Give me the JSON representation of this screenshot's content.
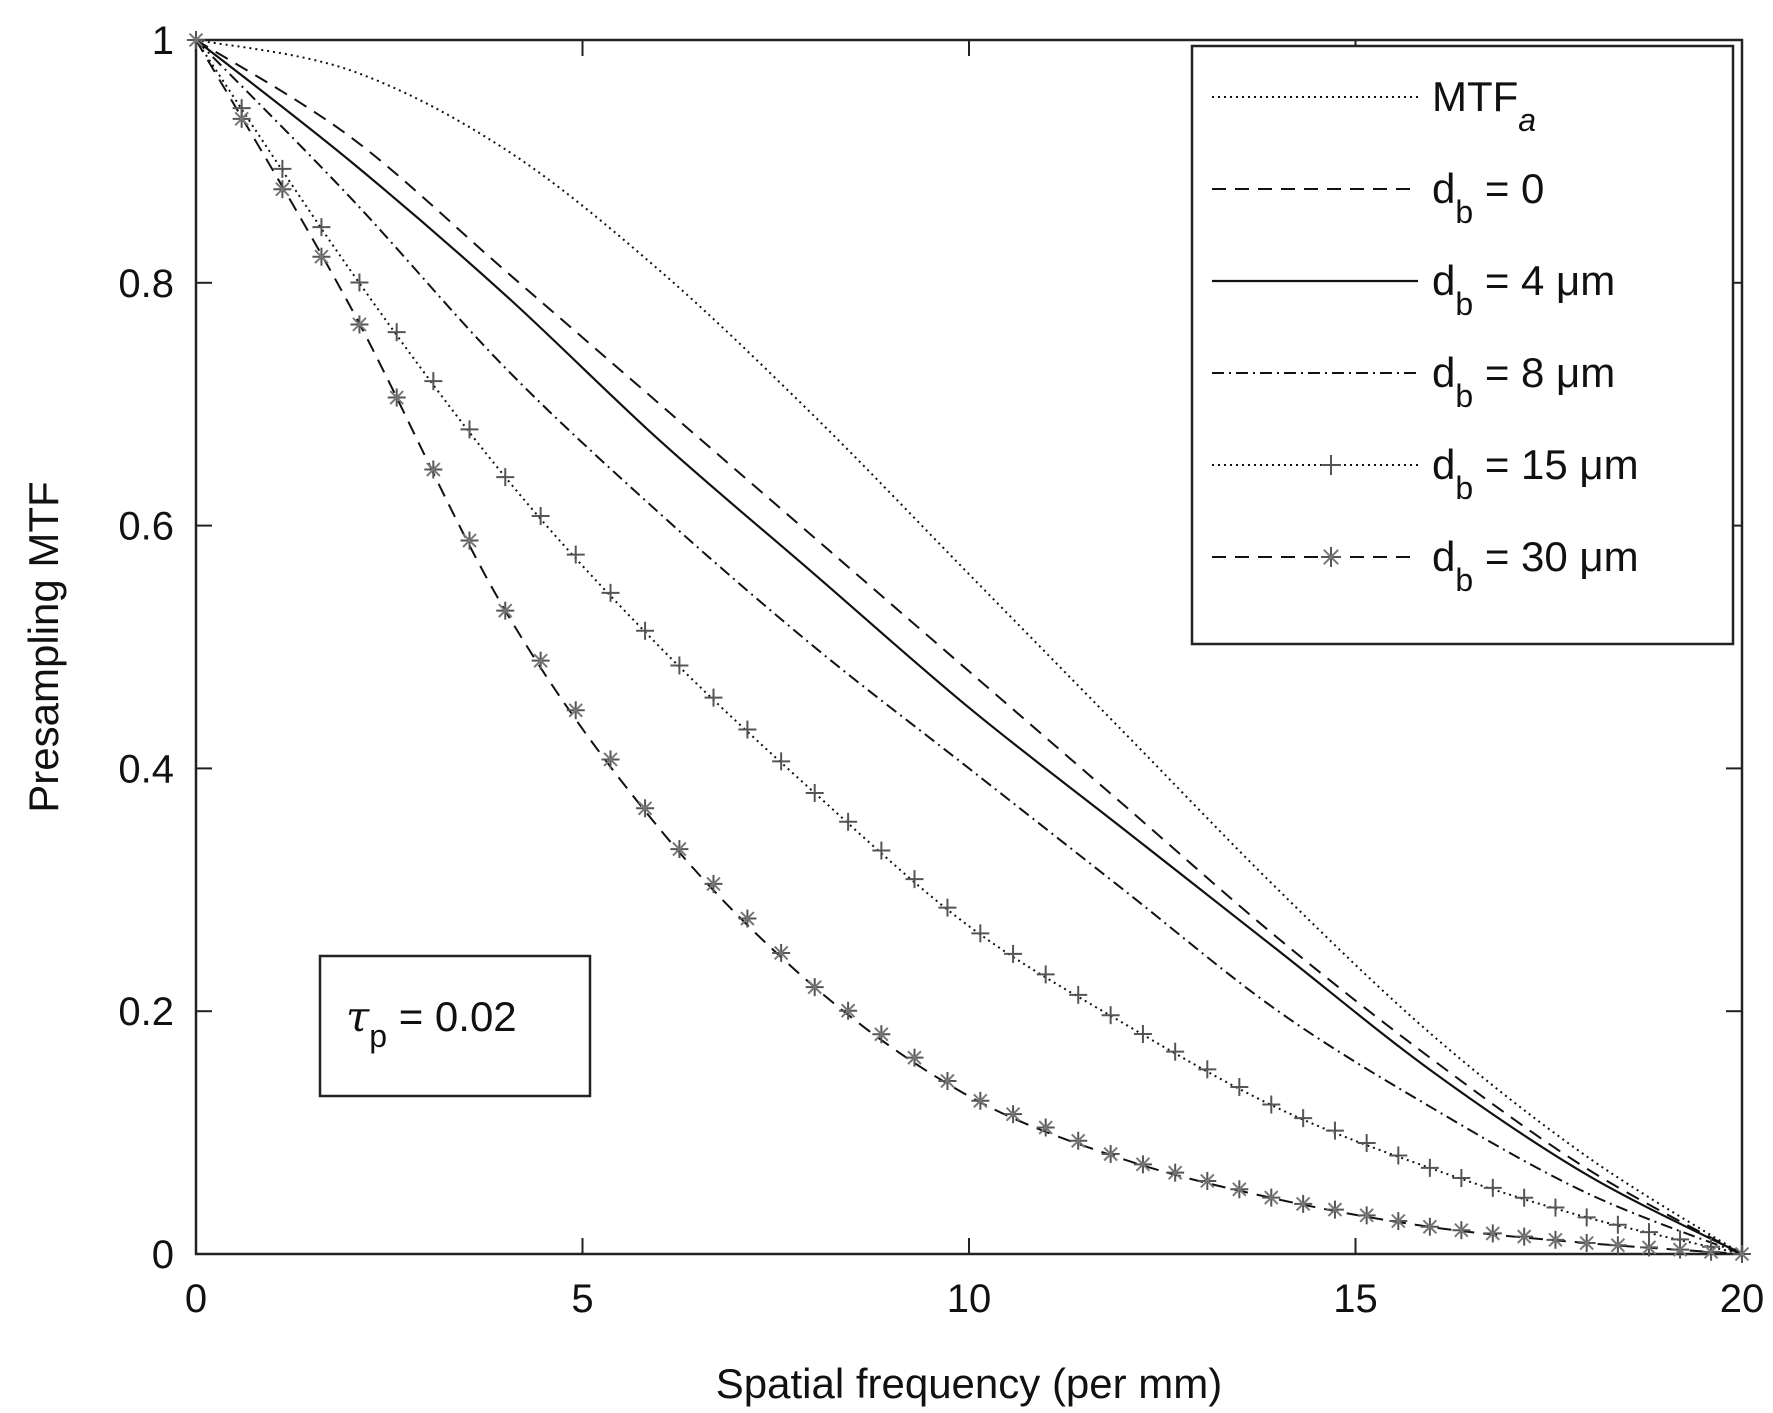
{
  "chart_data": {
    "type": "line",
    "title": "",
    "xlabel": "Spatial frequency (per mm)",
    "ylabel": "Presampling MTF",
    "xlim": [
      0,
      20
    ],
    "ylim": [
      0,
      1
    ],
    "xticks": [
      0,
      5,
      10,
      15,
      20
    ],
    "xtick_labels": [
      "0",
      "5",
      "10",
      "15",
      "20"
    ],
    "yticks": [
      0,
      0.2,
      0.4,
      0.6,
      0.8,
      1
    ],
    "ytick_labels": [
      "0",
      "0.2",
      "0.4",
      "0.6",
      "0.8",
      "1"
    ],
    "legend_position": "top-right",
    "annotation": {
      "symbol": "τ",
      "subscript": "p",
      "text": " = 0.02"
    },
    "series": [
      {
        "name": "MTF_a",
        "legend_main": "MTF",
        "legend_sub": "a",
        "legend_tail": "",
        "legend_italic_sub": true,
        "style": "dotted",
        "marker": "none",
        "x": [
          0,
          2,
          4,
          6,
          8,
          10,
          12,
          14,
          16,
          18,
          20
        ],
        "y": [
          1.0,
          0.975,
          0.91,
          0.81,
          0.69,
          0.56,
          0.43,
          0.3,
          0.18,
          0.08,
          0.0
        ]
      },
      {
        "name": "d_b = 0",
        "legend_main": "d",
        "legend_sub": "b",
        "legend_tail": " = 0",
        "legend_italic_sub": false,
        "style": "dashed",
        "marker": "none",
        "x": [
          0,
          2,
          4,
          6,
          8,
          10,
          12,
          14,
          16,
          18,
          20
        ],
        "y": [
          1.0,
          0.92,
          0.81,
          0.7,
          0.59,
          0.48,
          0.37,
          0.26,
          0.16,
          0.07,
          0.0
        ]
      },
      {
        "name": "d_b = 4 μm",
        "legend_main": "d",
        "legend_sub": "b",
        "legend_tail": " = 4 μm",
        "legend_italic_sub": false,
        "style": "solid",
        "marker": "none",
        "x": [
          0,
          2,
          4,
          6,
          8,
          10,
          12,
          14,
          16,
          18,
          20
        ],
        "y": [
          1.0,
          0.9,
          0.79,
          0.67,
          0.56,
          0.45,
          0.35,
          0.25,
          0.15,
          0.065,
          0.0
        ]
      },
      {
        "name": "d_b = 8 μm",
        "legend_main": "d",
        "legend_sub": "b",
        "legend_tail": " = 8 μm",
        "legend_italic_sub": false,
        "style": "dashdot",
        "marker": "none",
        "x": [
          0,
          2,
          4,
          6,
          8,
          10,
          12,
          14,
          16,
          18,
          20
        ],
        "y": [
          1.0,
          0.87,
          0.73,
          0.61,
          0.5,
          0.4,
          0.3,
          0.2,
          0.12,
          0.05,
          0.0
        ]
      },
      {
        "name": "d_b = 15 μm",
        "legend_main": "d",
        "legend_sub": "b",
        "legend_tail": " = 15 μm",
        "legend_italic_sub": false,
        "style": "dotted",
        "marker": "plus",
        "x": [
          0,
          2,
          4,
          6,
          8,
          10,
          12,
          14,
          16,
          18,
          20
        ],
        "y": [
          1.0,
          0.81,
          0.64,
          0.5,
          0.38,
          0.27,
          0.19,
          0.12,
          0.07,
          0.03,
          0.0
        ]
      },
      {
        "name": "d_b = 30 μm",
        "legend_main": "d",
        "legend_sub": "b",
        "legend_tail": " = 30 μm",
        "legend_italic_sub": false,
        "style": "dashed",
        "marker": "star",
        "x": [
          0,
          2,
          4,
          6,
          8,
          10,
          12,
          14,
          16,
          18,
          20
        ],
        "y": [
          1.0,
          0.78,
          0.53,
          0.35,
          0.22,
          0.13,
          0.078,
          0.045,
          0.022,
          0.009,
          0.0
        ]
      }
    ]
  }
}
